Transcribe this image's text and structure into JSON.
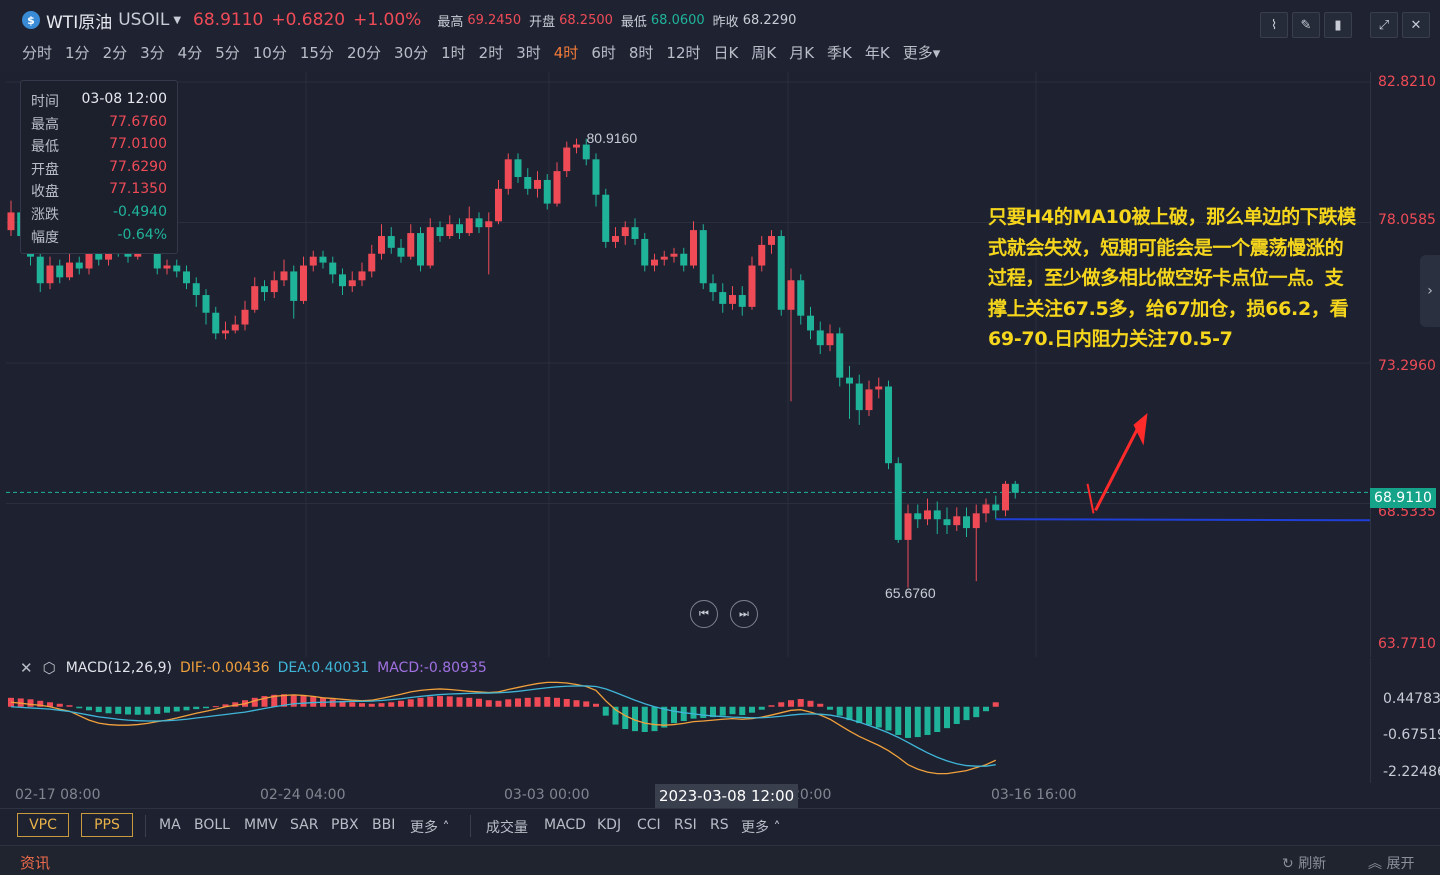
{
  "header": {
    "symbol_icon": "currency-icon",
    "symbol_name": "WTI原油",
    "symbol_code": "USOIL",
    "last": "68.9110",
    "change": "+0.6820",
    "change_pct": "+1.00%",
    "high_label": "最高",
    "high": "69.2450",
    "open_label": "开盘",
    "open": "68.2500",
    "low_label": "最低",
    "low": "68.0600",
    "prev_label": "昨收",
    "prev": "68.2290"
  },
  "periods": [
    "分时",
    "1分",
    "2分",
    "3分",
    "4分",
    "5分",
    "10分",
    "15分",
    "20分",
    "30分",
    "1时",
    "2时",
    "3时",
    "4时",
    "6时",
    "8时",
    "12时",
    "日K",
    "周K",
    "月K",
    "季K",
    "年K",
    "更多"
  ],
  "active_period": "4时",
  "info_box": {
    "rows": [
      {
        "label": "时间",
        "value": "03-08 12:00",
        "color": "#e8eaf0"
      },
      {
        "label": "最高",
        "value": "77.6760",
        "color": "#ef4b57"
      },
      {
        "label": "最低",
        "value": "77.0100",
        "color": "#ef4b57"
      },
      {
        "label": "开盘",
        "value": "77.6290",
        "color": "#ef4b57"
      },
      {
        "label": "收盘",
        "value": "77.1350",
        "color": "#ef4b57"
      },
      {
        "label": "涨跌",
        "value": "-0.4940",
        "color": "#1fb39a"
      },
      {
        "label": "幅度",
        "value": "-0.64%",
        "color": "#1fb39a"
      }
    ]
  },
  "annotation": "只要H4的MA10被上破，那么单边的下跌模式就会失效，短期可能会是一个震荡慢涨的过程，至少做多相比做空好卡点位一点。支撑上关注67.5多，给67加仓，损66.2，看69-70.日内阻力关注70.5-7",
  "price_axis": {
    "labels": [
      "82.8210",
      "78.0585",
      "73.2960",
      "68.5335",
      "63.7710"
    ],
    "current": "68.9110"
  },
  "chart_data": {
    "type": "candlestick",
    "ylim": [
      63.771,
      82.821
    ],
    "up_color": "#ef4b57",
    "down_color": "#1fb39a",
    "candles": [
      {
        "o": 77.8,
        "c": 78.4,
        "h": 78.8,
        "l": 77.6
      },
      {
        "o": 78.4,
        "c": 77.6,
        "h": 78.6,
        "l": 77.3
      },
      {
        "o": 77.6,
        "c": 76.9,
        "h": 77.8,
        "l": 76.6
      },
      {
        "o": 76.9,
        "c": 76.0,
        "h": 77.1,
        "l": 75.7
      },
      {
        "o": 76.0,
        "c": 76.6,
        "h": 76.9,
        "l": 75.8
      },
      {
        "o": 76.6,
        "c": 76.2,
        "h": 76.8,
        "l": 76.0
      },
      {
        "o": 76.2,
        "c": 76.7,
        "h": 77.0,
        "l": 76.1
      },
      {
        "o": 76.7,
        "c": 76.5,
        "h": 76.9,
        "l": 76.3
      },
      {
        "o": 76.5,
        "c": 77.0,
        "h": 77.4,
        "l": 76.3
      },
      {
        "o": 77.0,
        "c": 76.8,
        "h": 77.3,
        "l": 76.6
      },
      {
        "o": 76.8,
        "c": 77.3,
        "h": 77.6,
        "l": 76.6
      },
      {
        "o": 77.3,
        "c": 77.1,
        "h": 77.6,
        "l": 76.9
      },
      {
        "o": 77.1,
        "c": 76.9,
        "h": 77.4,
        "l": 76.7
      },
      {
        "o": 76.9,
        "c": 77.3,
        "h": 77.7,
        "l": 76.8
      },
      {
        "o": 77.6,
        "c": 77.1,
        "h": 77.7,
        "l": 77.0
      },
      {
        "o": 77.1,
        "c": 76.5,
        "h": 77.3,
        "l": 76.3
      },
      {
        "o": 76.5,
        "c": 76.6,
        "h": 76.8,
        "l": 76.3
      },
      {
        "o": 76.6,
        "c": 76.4,
        "h": 76.8,
        "l": 76.2
      },
      {
        "o": 76.4,
        "c": 76.0,
        "h": 76.6,
        "l": 75.8
      },
      {
        "o": 76.0,
        "c": 75.6,
        "h": 76.2,
        "l": 75.2
      },
      {
        "o": 75.6,
        "c": 75.0,
        "h": 75.8,
        "l": 74.6
      },
      {
        "o": 75.0,
        "c": 74.3,
        "h": 75.2,
        "l": 74.1
      },
      {
        "o": 74.3,
        "c": 74.4,
        "h": 74.7,
        "l": 74.1
      },
      {
        "o": 74.4,
        "c": 74.6,
        "h": 74.9,
        "l": 74.3
      },
      {
        "o": 74.6,
        "c": 75.1,
        "h": 75.4,
        "l": 74.4
      },
      {
        "o": 75.1,
        "c": 75.9,
        "h": 76.2,
        "l": 75.0
      },
      {
        "o": 75.9,
        "c": 75.7,
        "h": 76.1,
        "l": 75.4
      },
      {
        "o": 75.7,
        "c": 76.1,
        "h": 76.4,
        "l": 75.5
      },
      {
        "o": 76.1,
        "c": 76.4,
        "h": 76.8,
        "l": 75.9
      },
      {
        "o": 76.4,
        "c": 75.4,
        "h": 76.6,
        "l": 74.8
      },
      {
        "o": 75.4,
        "c": 76.6,
        "h": 76.9,
        "l": 75.3
      },
      {
        "o": 76.6,
        "c": 76.9,
        "h": 77.1,
        "l": 76.4
      },
      {
        "o": 76.9,
        "c": 76.7,
        "h": 77.1,
        "l": 76.5
      },
      {
        "o": 76.7,
        "c": 76.3,
        "h": 76.9,
        "l": 76.0
      },
      {
        "o": 76.3,
        "c": 75.9,
        "h": 76.5,
        "l": 75.6
      },
      {
        "o": 75.9,
        "c": 76.1,
        "h": 76.4,
        "l": 75.7
      },
      {
        "o": 76.1,
        "c": 76.4,
        "h": 76.7,
        "l": 75.9
      },
      {
        "o": 76.4,
        "c": 77.0,
        "h": 77.3,
        "l": 76.2
      },
      {
        "o": 77.0,
        "c": 77.6,
        "h": 78.0,
        "l": 76.8
      },
      {
        "o": 77.6,
        "c": 77.2,
        "h": 77.9,
        "l": 77.0
      },
      {
        "o": 77.2,
        "c": 76.9,
        "h": 77.5,
        "l": 76.7
      },
      {
        "o": 76.9,
        "c": 77.7,
        "h": 78.0,
        "l": 76.8
      },
      {
        "o": 77.7,
        "c": 76.6,
        "h": 77.9,
        "l": 76.4
      },
      {
        "o": 76.6,
        "c": 77.9,
        "h": 78.2,
        "l": 76.5
      },
      {
        "o": 77.9,
        "c": 77.6,
        "h": 78.1,
        "l": 77.4
      },
      {
        "o": 77.6,
        "c": 78.0,
        "h": 78.3,
        "l": 77.5
      },
      {
        "o": 78.0,
        "c": 77.7,
        "h": 78.2,
        "l": 77.5
      },
      {
        "o": 77.7,
        "c": 78.2,
        "h": 78.6,
        "l": 77.6
      },
      {
        "o": 78.2,
        "c": 77.9,
        "h": 78.4,
        "l": 77.7
      },
      {
        "o": 77.9,
        "c": 78.1,
        "h": 78.4,
        "l": 76.3
      },
      {
        "o": 78.1,
        "c": 79.2,
        "h": 79.5,
        "l": 78.0
      },
      {
        "o": 79.2,
        "c": 80.2,
        "h": 80.4,
        "l": 79.0
      },
      {
        "o": 80.2,
        "c": 79.6,
        "h": 80.4,
        "l": 79.4
      },
      {
        "o": 79.6,
        "c": 79.2,
        "h": 79.9,
        "l": 79.0
      },
      {
        "o": 79.2,
        "c": 79.5,
        "h": 79.8,
        "l": 78.9
      },
      {
        "o": 79.5,
        "c": 78.7,
        "h": 79.7,
        "l": 78.5
      },
      {
        "o": 78.7,
        "c": 79.8,
        "h": 80.1,
        "l": 78.6
      },
      {
        "o": 79.8,
        "c": 80.6,
        "h": 80.8,
        "l": 79.6
      },
      {
        "o": 80.6,
        "c": 80.7,
        "h": 80.9,
        "l": 80.4
      },
      {
        "o": 80.7,
        "c": 80.2,
        "h": 80.9,
        "l": 80.0
      },
      {
        "o": 80.2,
        "c": 79.0,
        "h": 80.4,
        "l": 78.6
      },
      {
        "o": 79.0,
        "c": 77.4,
        "h": 79.2,
        "l": 77.2
      },
      {
        "o": 77.4,
        "c": 77.6,
        "h": 77.9,
        "l": 77.2
      },
      {
        "o": 77.6,
        "c": 77.9,
        "h": 78.1,
        "l": 77.3
      },
      {
        "o": 77.9,
        "c": 77.5,
        "h": 78.2,
        "l": 77.3
      },
      {
        "o": 77.5,
        "c": 76.6,
        "h": 77.7,
        "l": 76.4
      },
      {
        "o": 76.6,
        "c": 76.8,
        "h": 77.0,
        "l": 76.4
      },
      {
        "o": 76.8,
        "c": 76.9,
        "h": 77.1,
        "l": 76.6
      },
      {
        "o": 76.9,
        "c": 77.0,
        "h": 77.2,
        "l": 76.7
      },
      {
        "o": 77.0,
        "c": 76.6,
        "h": 77.2,
        "l": 76.4
      },
      {
        "o": 76.6,
        "c": 77.8,
        "h": 78.1,
        "l": 76.5
      },
      {
        "o": 77.8,
        "c": 76.0,
        "h": 78.0,
        "l": 75.8
      },
      {
        "o": 76.0,
        "c": 75.7,
        "h": 76.3,
        "l": 75.4
      },
      {
        "o": 75.7,
        "c": 75.3,
        "h": 76.0,
        "l": 75.0
      },
      {
        "o": 75.3,
        "c": 75.6,
        "h": 75.9,
        "l": 75.1
      },
      {
        "o": 75.6,
        "c": 75.2,
        "h": 75.9,
        "l": 74.9
      },
      {
        "o": 75.2,
        "c": 76.6,
        "h": 76.9,
        "l": 75.1
      },
      {
        "o": 76.6,
        "c": 77.3,
        "h": 77.6,
        "l": 76.4
      },
      {
        "o": 77.3,
        "c": 77.6,
        "h": 77.8,
        "l": 77.0
      },
      {
        "o": 77.6,
        "c": 75.1,
        "h": 77.8,
        "l": 74.9
      },
      {
        "o": 75.1,
        "c": 76.1,
        "h": 76.5,
        "l": 72.0
      },
      {
        "o": 76.1,
        "c": 74.9,
        "h": 76.3,
        "l": 74.6
      },
      {
        "o": 74.9,
        "c": 74.4,
        "h": 75.2,
        "l": 74.1
      },
      {
        "o": 74.4,
        "c": 73.9,
        "h": 74.7,
        "l": 73.6
      },
      {
        "o": 73.9,
        "c": 74.3,
        "h": 74.6,
        "l": 73.7
      },
      {
        "o": 74.3,
        "c": 72.8,
        "h": 74.5,
        "l": 72.5
      },
      {
        "o": 72.8,
        "c": 72.6,
        "h": 73.2,
        "l": 71.4
      },
      {
        "o": 72.6,
        "c": 71.7,
        "h": 72.9,
        "l": 71.2
      },
      {
        "o": 71.7,
        "c": 72.4,
        "h": 72.7,
        "l": 71.5
      },
      {
        "o": 72.4,
        "c": 72.5,
        "h": 72.8,
        "l": 72.1
      },
      {
        "o": 72.5,
        "c": 69.9,
        "h": 72.7,
        "l": 69.7
      },
      {
        "o": 69.9,
        "c": 67.3,
        "h": 70.1,
        "l": 67.2
      },
      {
        "o": 67.3,
        "c": 68.2,
        "h": 68.5,
        "l": 65.68
      },
      {
        "o": 68.2,
        "c": 68.0,
        "h": 68.5,
        "l": 67.7
      },
      {
        "o": 68.0,
        "c": 68.3,
        "h": 68.7,
        "l": 67.8
      },
      {
        "o": 68.3,
        "c": 68.0,
        "h": 68.6,
        "l": 67.5
      },
      {
        "o": 68.0,
        "c": 67.8,
        "h": 68.4,
        "l": 67.5
      },
      {
        "o": 67.8,
        "c": 68.1,
        "h": 68.4,
        "l": 67.6
      },
      {
        "o": 68.1,
        "c": 67.7,
        "h": 68.4,
        "l": 67.4
      },
      {
        "o": 67.7,
        "c": 68.2,
        "h": 68.5,
        "l": 65.9
      },
      {
        "o": 68.2,
        "c": 68.5,
        "h": 68.7,
        "l": 67.9
      },
      {
        "o": 68.5,
        "c": 68.3,
        "h": 68.8,
        "l": 68.0
      },
      {
        "o": 68.3,
        "c": 69.2,
        "h": 69.3,
        "l": 68.1
      },
      {
        "o": 69.2,
        "c": 68.9,
        "h": 69.3,
        "l": 68.7
      }
    ],
    "annotations": [
      {
        "text": "80.9160",
        "price": 80.916,
        "index": 58
      },
      {
        "text": "65.6760",
        "price": 65.676,
        "index": 96
      }
    ],
    "support_line": 68.0,
    "x_ticks": [
      {
        "label": "02-17 08:00",
        "index": 7
      },
      {
        "label": "02-24 04:00",
        "index": 40
      },
      {
        "label": "03-03 00:00",
        "index": 73
      },
      {
        "label": "20:00",
        "index": 106
      },
      {
        "label": "03-16 16:00",
        "index": 139
      }
    ],
    "crosshair_x_label": "2023-03-08 12:00"
  },
  "macd": {
    "title": "MACD(12,26,9)",
    "dif_label": "DIF:-0.00436",
    "dea_label": "DEA:0.40031",
    "macd_label": "MACD:-0.80935",
    "dif_color": "#f0a03c",
    "dea_color": "#3fb5d8",
    "macd_color": "#a070e0",
    "axis_labels": [
      "0.44783",
      "-0.67519",
      "-2.22486"
    ],
    "ylim": [
      -2.6,
      0.9
    ],
    "histogram": [
      0.3,
      0.28,
      0.25,
      0.2,
      0.15,
      0.1,
      0.05,
      -0.05,
      -0.12,
      -0.18,
      -0.22,
      -0.24,
      -0.26,
      -0.27,
      -0.26,
      -0.24,
      -0.2,
      -0.16,
      -0.12,
      -0.08,
      -0.05,
      0.02,
      0.08,
      0.15,
      0.22,
      0.3,
      0.36,
      0.4,
      0.42,
      0.41,
      0.38,
      0.34,
      0.3,
      0.25,
      0.2,
      0.15,
      0.12,
      0.1,
      0.12,
      0.15,
      0.2,
      0.25,
      0.3,
      0.34,
      0.36,
      0.35,
      0.32,
      0.3,
      0.27,
      0.22,
      0.2,
      0.25,
      0.28,
      0.3,
      0.32,
      0.33,
      0.3,
      0.26,
      0.22,
      0.18,
      0.1,
      -0.3,
      -0.6,
      -0.75,
      -0.82,
      -0.85,
      -0.82,
      -0.7,
      -0.55,
      -0.48,
      -0.4,
      -0.38,
      -0.35,
      -0.3,
      -0.25,
      -0.28,
      -0.2,
      -0.1,
      0.05,
      0.15,
      0.22,
      0.26,
      0.2,
      0.1,
      -0.1,
      -0.3,
      -0.45,
      -0.55,
      -0.62,
      -0.7,
      -0.8,
      -0.95,
      -1.05,
      -1.02,
      -0.95,
      -0.85,
      -0.72,
      -0.58,
      -0.45,
      -0.35,
      -0.15,
      0.15
    ],
    "dif": [
      0.15,
      0.12,
      0.08,
      0.05,
      0.0,
      -0.08,
      -0.15,
      -0.3,
      -0.45,
      -0.55,
      -0.6,
      -0.62,
      -0.62,
      -0.6,
      -0.56,
      -0.5,
      -0.45,
      -0.38,
      -0.3,
      -0.22,
      -0.15,
      -0.08,
      0.0,
      0.05,
      0.1,
      0.2,
      0.28,
      0.35,
      0.38,
      0.4,
      0.38,
      0.35,
      0.3,
      0.28,
      0.25,
      0.22,
      0.2,
      0.22,
      0.28,
      0.35,
      0.42,
      0.5,
      0.55,
      0.58,
      0.6,
      0.58,
      0.55,
      0.52,
      0.5,
      0.48,
      0.5,
      0.58,
      0.65,
      0.72,
      0.78,
      0.82,
      0.82,
      0.8,
      0.75,
      0.68,
      0.55,
      0.2,
      -0.1,
      -0.3,
      -0.45,
      -0.55,
      -0.6,
      -0.62,
      -0.6,
      -0.56,
      -0.5,
      -0.48,
      -0.45,
      -0.42,
      -0.4,
      -0.42,
      -0.4,
      -0.35,
      -0.28,
      -0.2,
      -0.12,
      -0.1,
      -0.18,
      -0.28,
      -0.42,
      -0.62,
      -0.82,
      -1.0,
      -1.15,
      -1.3,
      -1.48,
      -1.7,
      -1.95,
      -2.1,
      -2.2,
      -2.25,
      -2.25,
      -2.2,
      -2.15,
      -2.05,
      -1.95,
      -1.8
    ],
    "dea": [
      0.0,
      -0.02,
      -0.04,
      -0.06,
      -0.08,
      -0.12,
      -0.16,
      -0.22,
      -0.28,
      -0.34,
      -0.38,
      -0.42,
      -0.45,
      -0.47,
      -0.48,
      -0.48,
      -0.47,
      -0.45,
      -0.42,
      -0.38,
      -0.34,
      -0.3,
      -0.26,
      -0.22,
      -0.18,
      -0.12,
      -0.06,
      0.0,
      0.05,
      0.1,
      0.12,
      0.14,
      0.15,
      0.16,
      0.17,
      0.18,
      0.18,
      0.19,
      0.21,
      0.24,
      0.27,
      0.31,
      0.35,
      0.38,
      0.41,
      0.43,
      0.44,
      0.45,
      0.46,
      0.46,
      0.47,
      0.49,
      0.52,
      0.56,
      0.6,
      0.64,
      0.67,
      0.69,
      0.7,
      0.7,
      0.68,
      0.6,
      0.48,
      0.35,
      0.22,
      0.1,
      0.0,
      -0.08,
      -0.15,
      -0.2,
      -0.24,
      -0.28,
      -0.31,
      -0.33,
      -0.35,
      -0.36,
      -0.37,
      -0.37,
      -0.35,
      -0.32,
      -0.28,
      -0.25,
      -0.24,
      -0.25,
      -0.28,
      -0.34,
      -0.42,
      -0.52,
      -0.63,
      -0.75,
      -0.88,
      -1.03,
      -1.2,
      -1.38,
      -1.55,
      -1.7,
      -1.82,
      -1.92,
      -1.98,
      -2.0,
      -2.0,
      -1.95
    ]
  },
  "x_axis": {
    "labels": [
      "02-17 08:00",
      "02-24 04:00",
      "03-03 00:00",
      "20:00",
      "03-16 16:00"
    ],
    "crosshair": "2023-03-08 12:00"
  },
  "indicator_bar": {
    "vpc": "VPC",
    "pps": "PPS",
    "main": [
      "MA",
      "BOLL",
      "MMV",
      "SAR",
      "PBX",
      "BBI"
    ],
    "main_more": "更多",
    "sub": [
      "成交量",
      "MACD",
      "KDJ",
      "CCI",
      "RSI",
      "RS"
    ],
    "sub_more": "更多"
  },
  "footer": {
    "news": "资讯",
    "refresh": "刷新",
    "expand": "展开"
  },
  "colors": {
    "up": "#ef4b57",
    "down": "#1fb39a",
    "annotation": "#f5d61c",
    "support_line": "#1f3fd8",
    "arrow": "#ff2b2b"
  }
}
